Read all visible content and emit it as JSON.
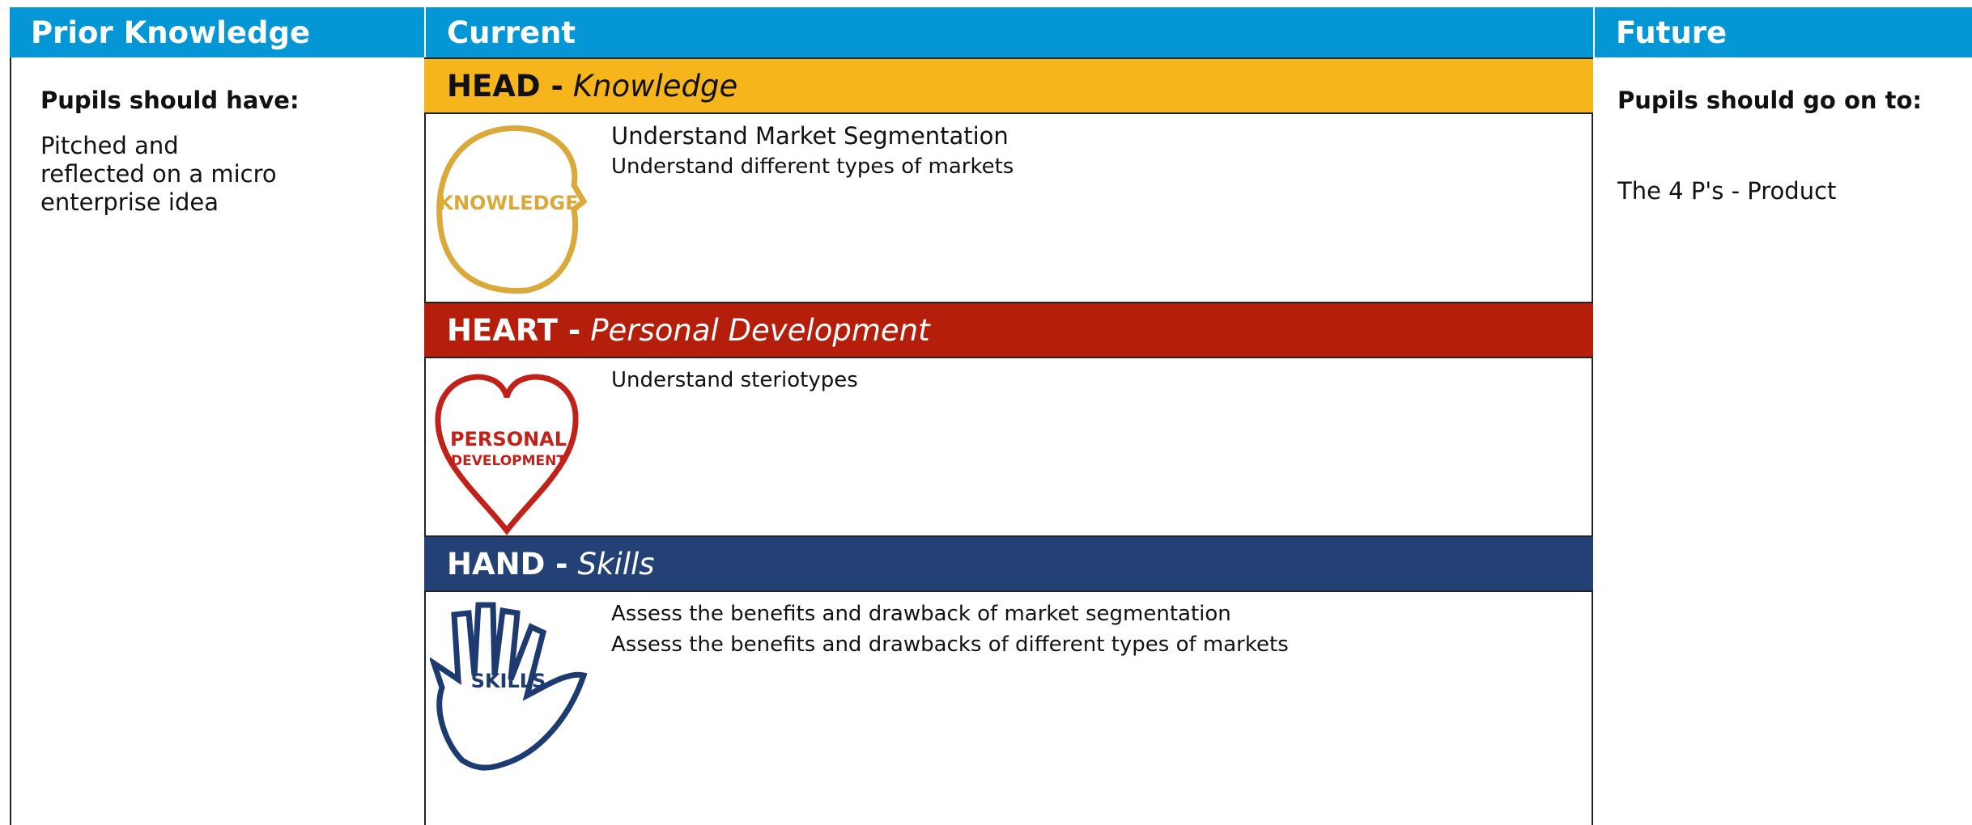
{
  "prior": {
    "title": "Prior Knowledge",
    "subtitle": "Pupils should have:",
    "lines": [
      "Pitched and",
      "reflected on a  micro",
      "enterprise idea"
    ]
  },
  "current": {
    "title": "Current",
    "sections": [
      {
        "label": "HEAD -",
        "sub": "Knowledge",
        "icon_text": [
          "KNOWLEDGE"
        ],
        "items": [
          "Understand Market Segmentation",
          "Understand different types of markets"
        ]
      },
      {
        "label": "HEART -",
        "sub": "Personal Development",
        "icon_text": [
          "PERSONAL",
          "DEVELOPMENT"
        ],
        "items": [
          "Understand steriotypes"
        ]
      },
      {
        "label": "HAND -",
        "sub": "Skills",
        "icon_text": [
          "SKILLS"
        ],
        "items": [
          "Assess the benefits and drawback of market segmentation",
          "Assess the benefits and drawbacks of different types of markets"
        ]
      }
    ]
  },
  "future": {
    "title": "Future",
    "subtitle": "Pupils should go on to:",
    "text": "The 4 P's - Product"
  }
}
